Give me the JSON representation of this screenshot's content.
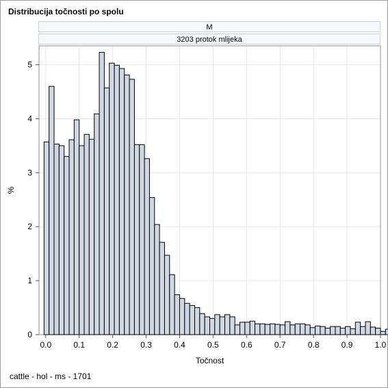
{
  "title": "Distribucija točnosti po spolu",
  "panel": {
    "header1": "M",
    "header2": "3203 protok mlijeka"
  },
  "footnote": "cattle - hol - ms - 1701",
  "chart_data": {
    "type": "bar",
    "xlabel": "Točnost",
    "ylabel": "%",
    "xlim": [
      -0.02,
      1.0
    ],
    "ylim": [
      0,
      5.35
    ],
    "xticks": [
      "0.0",
      "0.1",
      "0.2",
      "0.3",
      "0.4",
      "0.5",
      "0.6",
      "0.7",
      "0.8",
      "0.9",
      "1.0"
    ],
    "yticks": [
      "0",
      "1",
      "2",
      "3",
      "4",
      "5"
    ],
    "grid": true,
    "bin_start": -0.005,
    "bin_width": 0.015,
    "values": [
      3.57,
      4.6,
      3.53,
      3.5,
      3.3,
      3.61,
      3.98,
      3.5,
      3.71,
      3.62,
      4.09,
      5.23,
      4.57,
      5.03,
      4.99,
      4.93,
      4.81,
      4.73,
      3.52,
      3.52,
      3.26,
      2.54,
      2.04,
      1.71,
      1.47,
      1.11,
      0.74,
      0.67,
      0.58,
      0.54,
      0.5,
      0.39,
      0.33,
      0.3,
      0.37,
      0.33,
      0.37,
      0.33,
      0.18,
      0.23,
      0.23,
      0.25,
      0.2,
      0.2,
      0.19,
      0.2,
      0.19,
      0.18,
      0.24,
      0.18,
      0.2,
      0.2,
      0.18,
      0.13,
      0.16,
      0.15,
      0.12,
      0.15,
      0.15,
      0.12,
      0.15,
      0.11,
      0.23,
      0.15,
      0.24,
      0.14,
      0.12,
      0.06,
      0.1,
      0.05
    ]
  }
}
